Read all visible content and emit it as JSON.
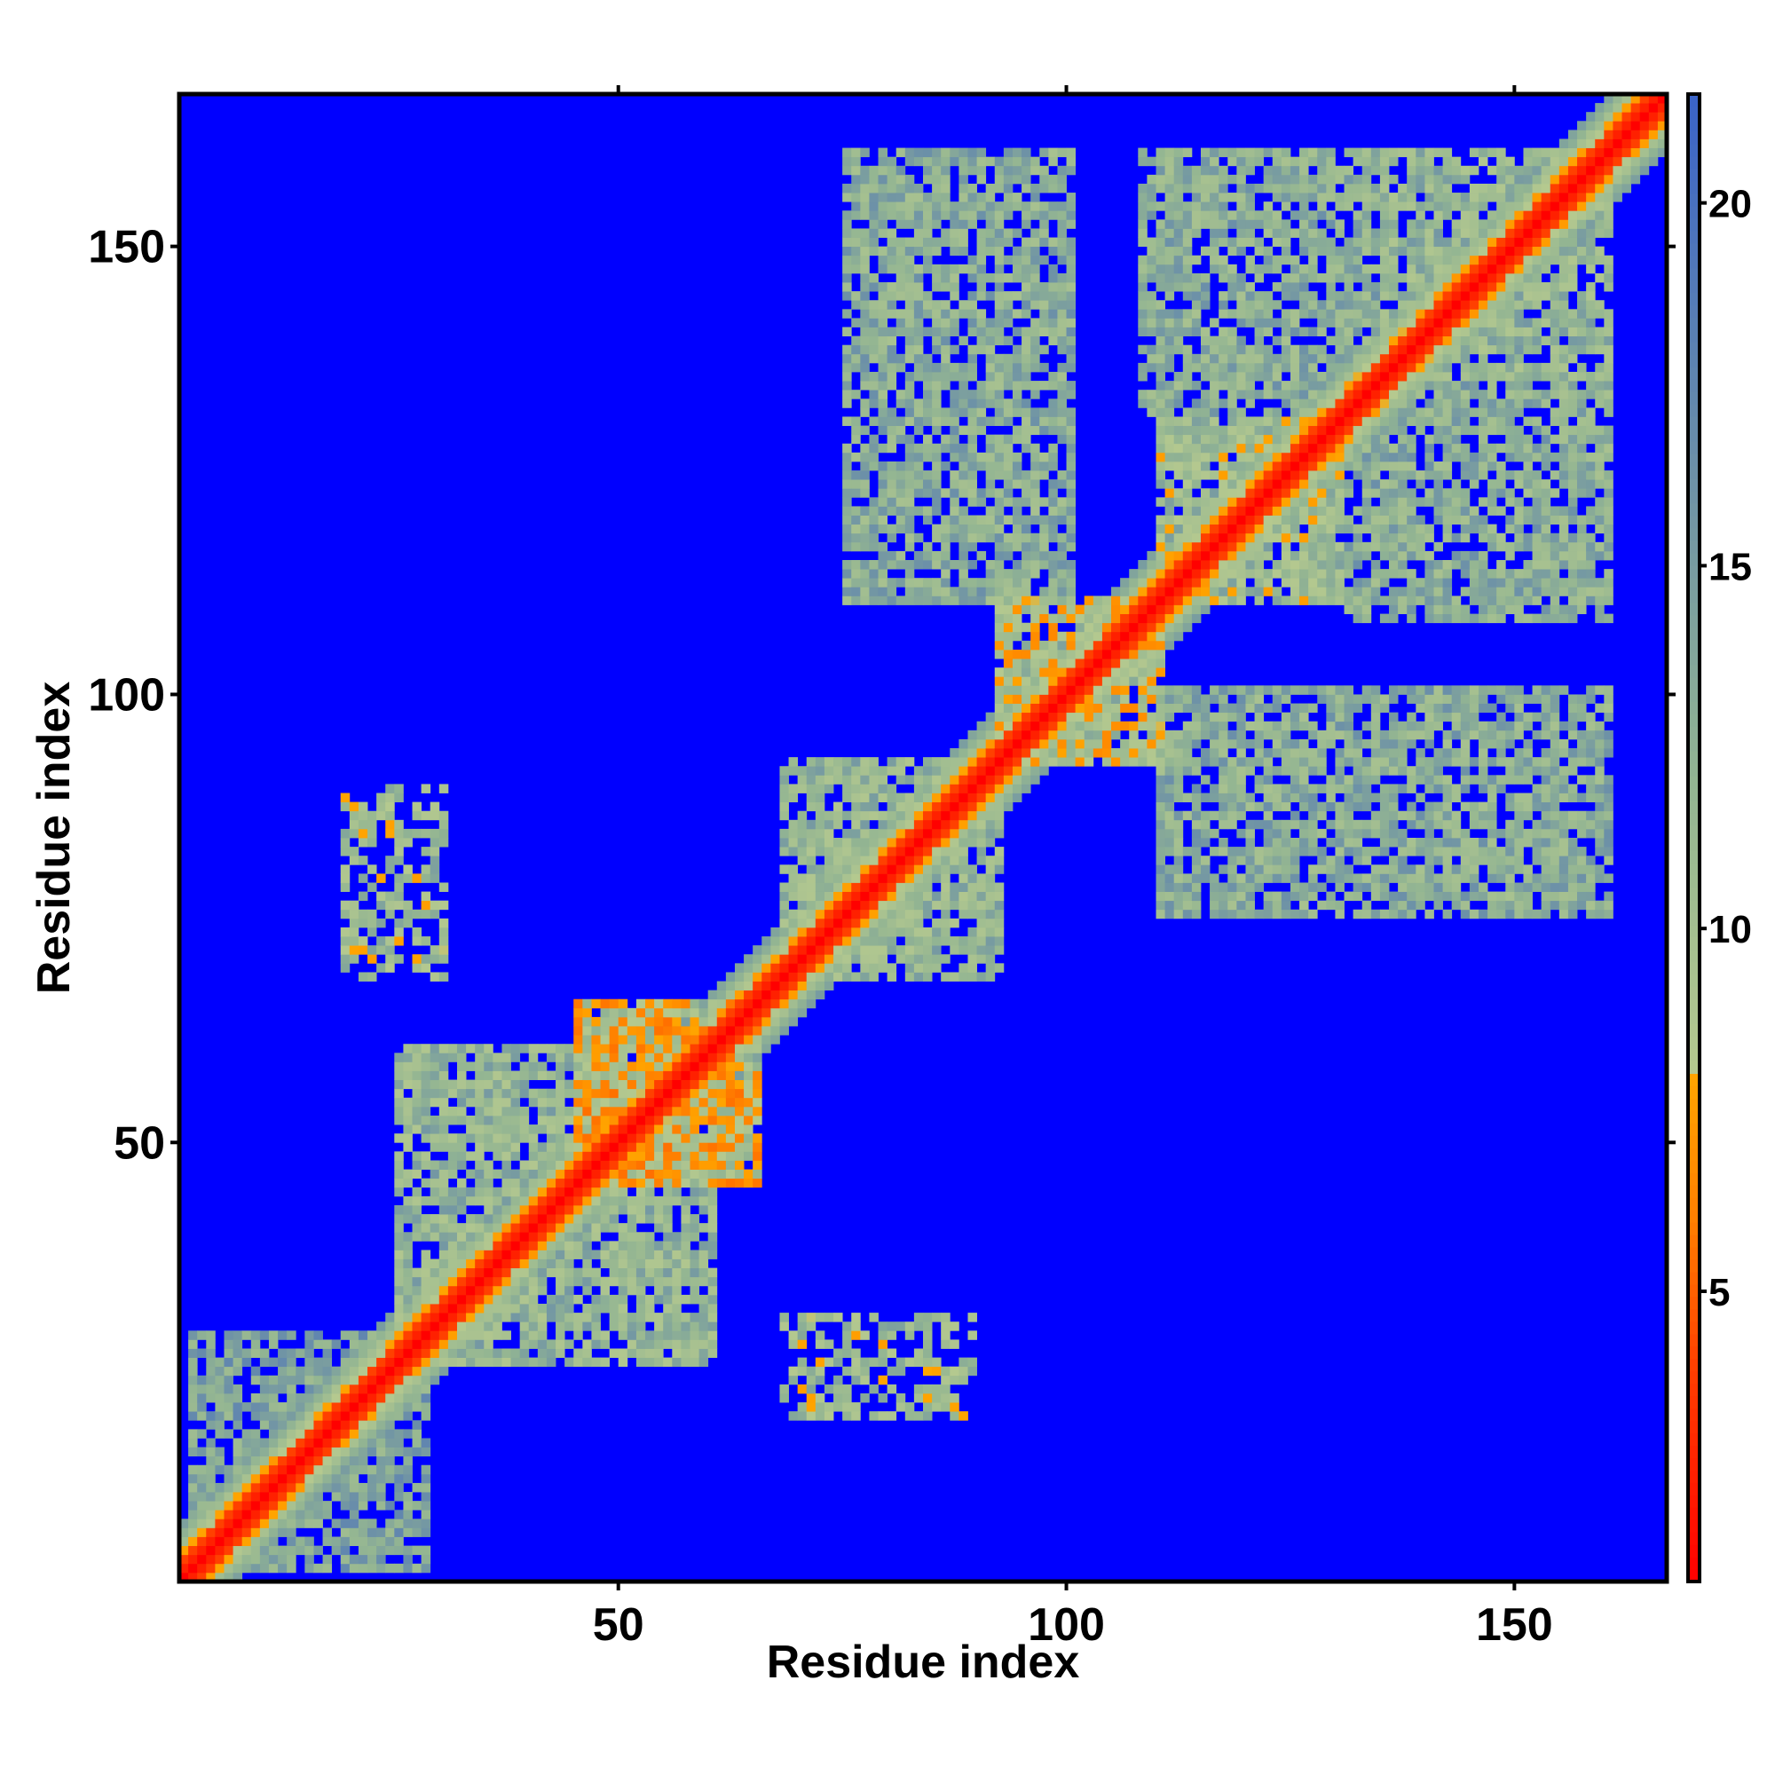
{
  "chart_data": {
    "type": "heatmap",
    "title": "",
    "xlabel": "Residue index",
    "ylabel": "Residue index",
    "xlim": [
      1,
      166
    ],
    "ylim": [
      1,
      166
    ],
    "x_ticks": [
      50,
      100,
      150
    ],
    "y_ticks": [
      50,
      100,
      150
    ],
    "x_tick_labels": [
      "50",
      "100",
      "150"
    ],
    "y_tick_labels": [
      "50",
      "100",
      "150"
    ],
    "grid": false,
    "legend": "colorbar right",
    "colorbar": {
      "range": [
        1,
        21.5
      ],
      "ticks": [
        5,
        10,
        15,
        20
      ],
      "tick_labels": [
        "5",
        "10",
        "15",
        "20"
      ],
      "stops": [
        {
          "value": 1,
          "color": "#ff0000"
        },
        {
          "value": 4,
          "color": "#ff4000"
        },
        {
          "value": 6,
          "color": "#ff7f00"
        },
        {
          "value": 8,
          "color": "#ffa500"
        },
        {
          "value": 8.01,
          "color": "#b5c98f"
        },
        {
          "value": 12,
          "color": "#93b592"
        },
        {
          "value": 16,
          "color": "#6f93a6"
        },
        {
          "value": 21.5,
          "color": "#3a63c8"
        }
      ],
      "background_color": "#0000ff"
    },
    "description_of_values": "Symmetric inter-residue distance map (distance in Å-like units). Values above ~20 shown as saturated blue background.",
    "diagonal_band": {
      "core_width": 2,
      "band_width": 6
    },
    "regions": [
      {
        "x": [
          2,
          28
        ],
        "y": [
          2,
          28
        ],
        "value": 14,
        "fill": 0.55
      },
      {
        "x": [
          25,
          60
        ],
        "y": [
          25,
          60
        ],
        "value": 12,
        "fill": 0.6
      },
      {
        "x": [
          45,
          65
        ],
        "y": [
          45,
          65
        ],
        "value": 9,
        "fill": 0.75
      },
      {
        "x": [
          68,
          92
        ],
        "y": [
          68,
          92
        ],
        "value": 12,
        "fill": 0.6
      },
      {
        "x": [
          92,
          110
        ],
        "y": [
          92,
          110
        ],
        "value": 10,
        "fill": 0.7
      },
      {
        "x": [
          75,
          100
        ],
        "y": [
          110,
          160
        ],
        "value": 13,
        "fill": 0.55
      },
      {
        "x": [
          110,
          160
        ],
        "y": [
          75,
          100
        ],
        "value": 13,
        "fill": 0.55
      },
      {
        "x": [
          108,
          135
        ],
        "y": [
          130,
          160
        ],
        "value": 13,
        "fill": 0.55
      },
      {
        "x": [
          130,
          160
        ],
        "y": [
          108,
          135
        ],
        "value": 13,
        "fill": 0.55
      },
      {
        "x": [
          135,
          160
        ],
        "y": [
          135,
          160
        ],
        "value": 12,
        "fill": 0.6
      },
      {
        "x": [
          110,
          130
        ],
        "y": [
          110,
          130
        ],
        "value": 11,
        "fill": 0.6
      },
      {
        "x": [
          19,
          30
        ],
        "y": [
          70,
          88
        ],
        "value": 11,
        "fill": 0.35
      },
      {
        "x": [
          68,
          89
        ],
        "y": [
          19,
          30
        ],
        "value": 11,
        "fill": 0.35
      }
    ]
  }
}
